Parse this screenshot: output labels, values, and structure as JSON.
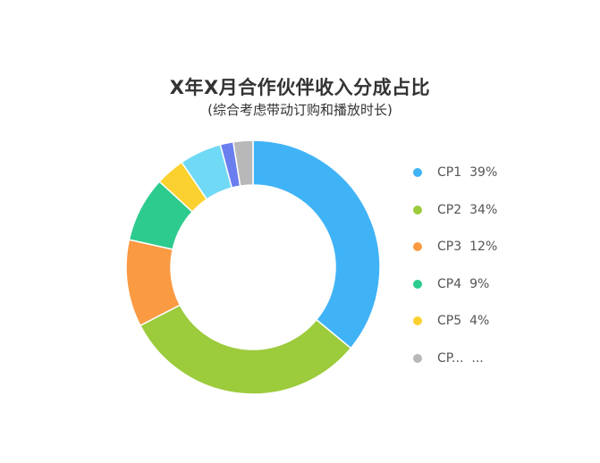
{
  "chart_data": {
    "type": "pie",
    "donut": true,
    "title": "X年X月合作伙伴收入分成占比",
    "subtitle": "(综合考虑带动订购和播放时长)",
    "slices": [
      {
        "label": "CP1",
        "value": 39,
        "value_label": "39%",
        "color": "#40b3f6"
      },
      {
        "label": "CP2",
        "value": 34,
        "value_label": "34%",
        "color": "#9ccb3c"
      },
      {
        "label": "CP3",
        "value": 12,
        "value_label": "12%",
        "color": "#fa9a42"
      },
      {
        "label": "CP4",
        "value": 9,
        "value_label": "9%",
        "color": "#2ecb8e"
      },
      {
        "label": "CP5",
        "value": 4,
        "value_label": "4%",
        "color": "#fbd12f"
      },
      {
        "label": "",
        "value": 5.8,
        "value_label": "",
        "color": "#70d9f5"
      },
      {
        "label": "",
        "value": 1.8,
        "value_label": "",
        "color": "#6b7ef0"
      },
      {
        "label": "CP...",
        "value": 2.7,
        "value_label": "...",
        "color": "#b8b8b8"
      }
    ],
    "legend": {
      "placement": "right",
      "items": [
        {
          "label": "CP1",
          "value": "39%",
          "color": "#40b3f6"
        },
        {
          "label": "CP2",
          "value": "34%",
          "color": "#9ccb3c"
        },
        {
          "label": "CP3",
          "value": "12%",
          "color": "#fa9a42"
        },
        {
          "label": "CP4",
          "value": "9%",
          "color": "#2ecb8e"
        },
        {
          "label": "CP5",
          "value": "4%",
          "color": "#fbd12f"
        },
        {
          "label": "CP...",
          "value": "...",
          "color": "#b8b8b8"
        }
      ]
    }
  }
}
